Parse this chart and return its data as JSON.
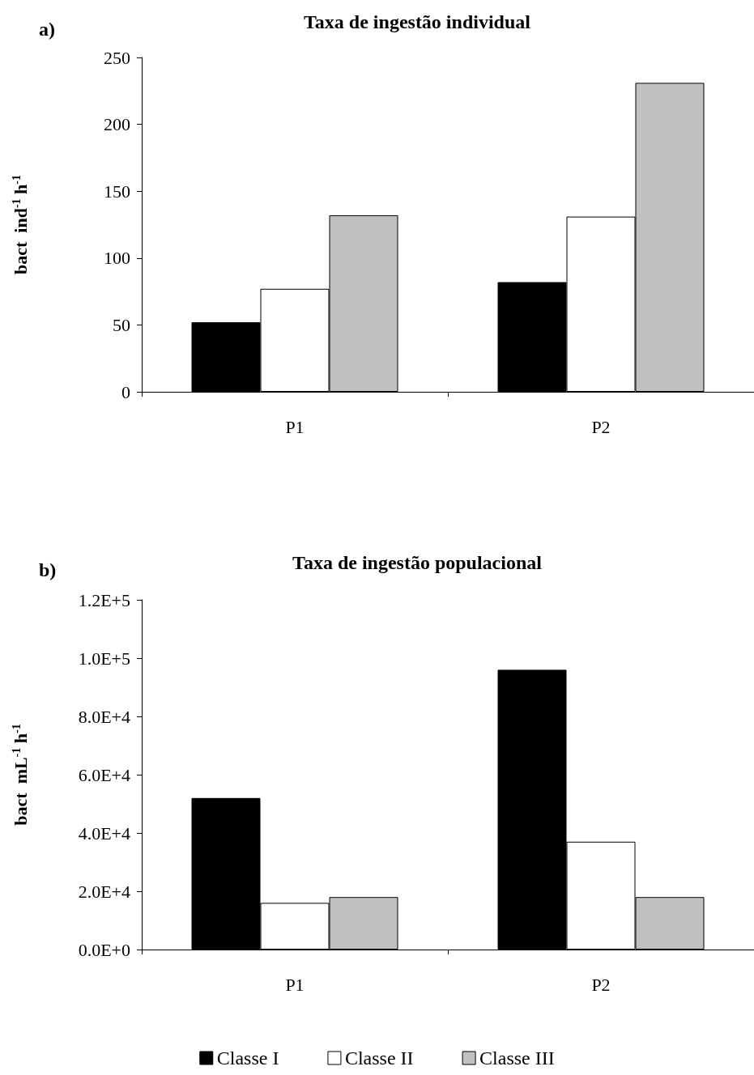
{
  "chart_data": [
    {
      "type": "bar",
      "title": "Taxa de ingestão individual",
      "ylabel": "bact  ind$^{-1}$ h$^{-1}$",
      "annotations": [
        "a)"
      ],
      "categories": [
        "P1",
        "P2"
      ],
      "series": [
        {
          "color": "#000000",
          "values": [
            52,
            82
          ]
        },
        {
          "color": "#ffffff",
          "values": [
            77,
            131
          ]
        },
        {
          "color": "#c0c0c0",
          "values": [
            132,
            231
          ]
        }
      ],
      "ylim": [
        0,
        250
      ],
      "yticks": [
        0,
        50,
        100,
        150,
        200,
        250
      ],
      "grid": false,
      "legend": false
    },
    {
      "type": "bar",
      "title": "Taxa de ingestão populacional",
      "ylabel": "bact  mL$^{-1}$ h$^{-1}$",
      "annotations": [
        "b)"
      ],
      "categories": [
        "P1",
        "P2"
      ],
      "series": [
        {
          "name": "Classe I",
          "color": "#000000",
          "values": [
            52000,
            96000
          ]
        },
        {
          "name": "Classe II",
          "color": "#ffffff",
          "values": [
            16000,
            37000
          ]
        },
        {
          "name": "Classe III",
          "color": "#c0c0c0",
          "values": [
            18000,
            18000
          ]
        }
      ],
      "ylim": [
        0,
        120000
      ],
      "yticks": [
        {
          "value": 0,
          "label": "0.0E+0"
        },
        {
          "value": 20000,
          "label": "2.0E+4"
        },
        {
          "value": 40000,
          "label": "4.0E+4"
        },
        {
          "value": 60000,
          "label": "6.0E+4"
        },
        {
          "value": 80000,
          "label": "8.0E+4"
        },
        {
          "value": 100000,
          "label": "1.0E+5"
        },
        {
          "value": 120000,
          "label": "1.2E+5"
        }
      ],
      "grid": false,
      "legend": "bottom"
    }
  ]
}
